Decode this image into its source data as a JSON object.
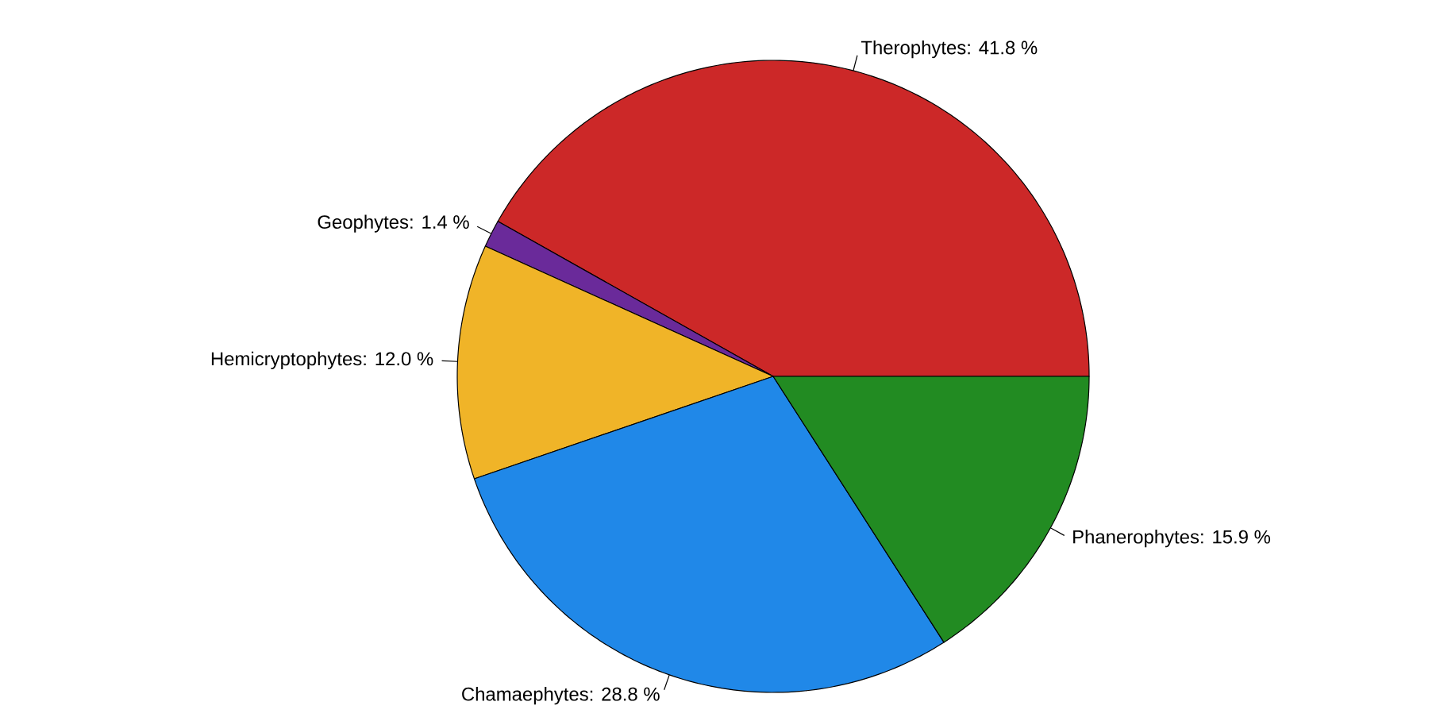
{
  "chart_data": {
    "type": "pie",
    "categories": [
      "Therophytes: 41.8 %",
      "Geophytes: 1.4 %",
      "Hemicryptophytes: 12.0 %",
      "Chamaephytes: 28.8 %",
      "Phanerophytes: 15.9 %"
    ],
    "values": [
      41.8,
      1.4,
      12.0,
      28.8,
      15.9
    ],
    "colors": [
      "#cc2828",
      "#6a2a9a",
      "#f0b428",
      "#2088e8",
      "#228b22"
    ]
  }
}
